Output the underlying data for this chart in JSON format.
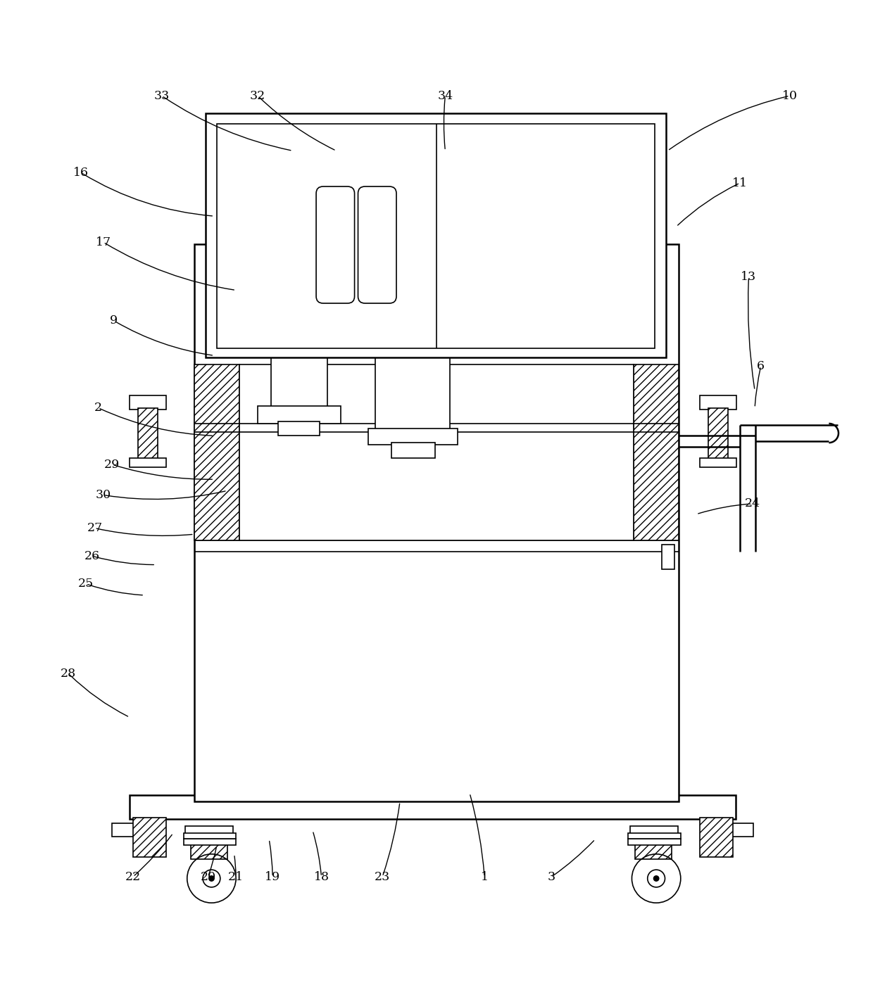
{
  "bg_color": "#ffffff",
  "line_color": "#000000",
  "fig_width": 12.4,
  "fig_height": 14.07,
  "dpi": 100,
  "labels_data": [
    [
      33,
      0.185,
      0.958,
      0.335,
      0.895,
      0.1
    ],
    [
      32,
      0.295,
      0.958,
      0.385,
      0.895,
      0.08
    ],
    [
      34,
      0.51,
      0.958,
      0.51,
      0.895,
      0.05
    ],
    [
      16,
      0.092,
      0.87,
      0.245,
      0.82,
      0.12
    ],
    [
      17,
      0.118,
      0.79,
      0.27,
      0.735,
      0.1
    ],
    [
      9,
      0.13,
      0.7,
      0.245,
      0.66,
      0.1
    ],
    [
      2,
      0.112,
      0.6,
      0.245,
      0.568,
      0.1
    ],
    [
      29,
      0.128,
      0.535,
      0.245,
      0.518,
      0.08
    ],
    [
      30,
      0.118,
      0.5,
      0.26,
      0.505,
      0.1
    ],
    [
      27,
      0.108,
      0.462,
      0.222,
      0.455,
      0.08
    ],
    [
      26,
      0.105,
      0.43,
      0.178,
      0.42,
      0.07
    ],
    [
      25,
      0.098,
      0.398,
      0.165,
      0.385,
      0.07
    ],
    [
      28,
      0.078,
      0.295,
      0.148,
      0.245,
      0.08
    ],
    [
      10,
      0.905,
      0.958,
      0.765,
      0.895,
      0.1
    ],
    [
      11,
      0.848,
      0.858,
      0.775,
      0.808,
      0.08
    ],
    [
      13,
      0.858,
      0.75,
      0.865,
      0.62,
      0.05
    ],
    [
      6,
      0.872,
      0.648,
      0.865,
      0.6,
      0.04
    ],
    [
      24,
      0.862,
      0.49,
      0.798,
      0.478,
      0.06
    ],
    [
      22,
      0.152,
      0.062,
      0.198,
      0.112,
      0.05
    ],
    [
      20,
      0.238,
      0.062,
      0.248,
      0.098,
      0.04
    ],
    [
      21,
      0.27,
      0.062,
      0.268,
      0.088,
      0.03
    ],
    [
      19,
      0.312,
      0.062,
      0.308,
      0.105,
      0.04
    ],
    [
      18,
      0.368,
      0.062,
      0.358,
      0.115,
      0.05
    ],
    [
      23,
      0.438,
      0.062,
      0.458,
      0.148,
      0.05
    ],
    [
      1,
      0.555,
      0.062,
      0.538,
      0.158,
      0.05
    ],
    [
      3,
      0.632,
      0.062,
      0.682,
      0.105,
      0.05
    ]
  ]
}
